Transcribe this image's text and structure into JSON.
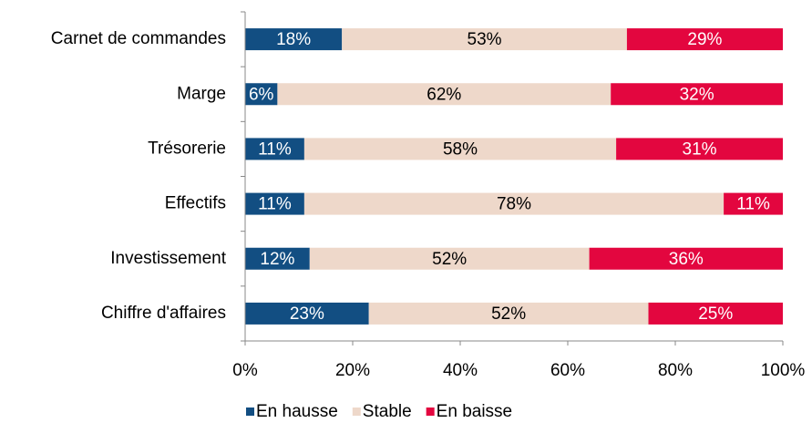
{
  "chart_data": {
    "type": "stacked_barh",
    "categories": [
      "Carnet de commandes",
      "Marge",
      "Trésorerie",
      "Effectifs",
      "Investissement",
      "Chiffre d'affaires"
    ],
    "series": [
      {
        "name": "En hausse",
        "color": "#124e82",
        "text_color": "#ffffff",
        "values": [
          18,
          6,
          11,
          11,
          12,
          23
        ],
        "value_labels": [
          "18%",
          "6%",
          "11%",
          "11%",
          "12%",
          "23%"
        ]
      },
      {
        "name": "Stable",
        "color": "#eed8ca",
        "text_color": "#000000",
        "values": [
          53,
          62,
          58,
          78,
          52,
          52
        ],
        "value_labels": [
          "53%",
          "62%",
          "58%",
          "78%",
          "52%",
          "52%"
        ]
      },
      {
        "name": "En baisse",
        "color": "#e3063f",
        "text_color": "#ffffff",
        "values": [
          29,
          32,
          31,
          11,
          36,
          25
        ],
        "value_labels": [
          "29%",
          "32%",
          "31%",
          "11%",
          "36%",
          "25%"
        ]
      }
    ],
    "xlim": [
      0,
      100
    ],
    "xticks": [
      {
        "value": 0,
        "label": "0%"
      },
      {
        "value": 20,
        "label": "20%"
      },
      {
        "value": 40,
        "label": "40%"
      },
      {
        "value": 60,
        "label": "60%"
      },
      {
        "value": 80,
        "label": "80%"
      },
      {
        "value": 100,
        "label": "100%"
      }
    ],
    "legend": "bottom"
  }
}
